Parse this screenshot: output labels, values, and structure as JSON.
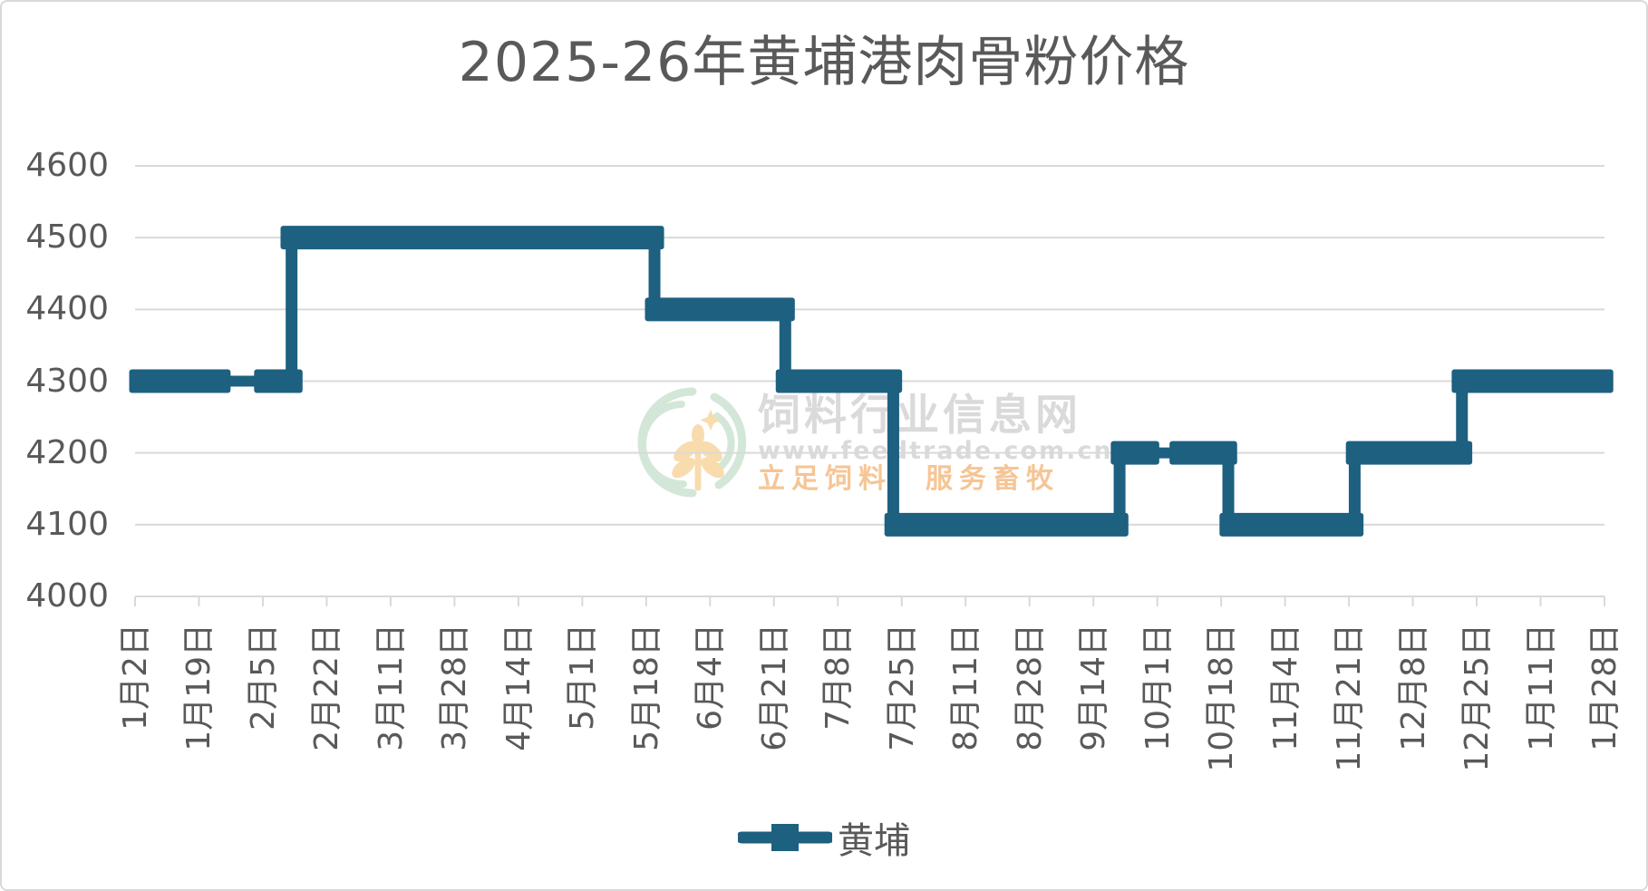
{
  "page": {
    "title": "2025-26年黄埔港肉骨粉价格",
    "background": "#ffffff",
    "border_color": "#d9d9d9"
  },
  "colors": {
    "series": "#1d6080",
    "axis_text": "#595959",
    "gridline": "#d9d9d9",
    "watermark_gray": "#dadada",
    "watermark_orange": "#f6c595",
    "watermark_green": "#d3e7d8",
    "watermark_wheat": "#f8dcae"
  },
  "legend": {
    "label": "黄埔"
  },
  "watermark": {
    "site_name": "饲料行业信息网",
    "site_url": "www.feedtrade.com.cn",
    "slogan": "立足饲料　服务畜牧"
  },
  "chart_data": {
    "type": "line",
    "title": "2025-26年黄埔港肉骨粉价格",
    "xlabel": "",
    "ylabel": "",
    "ylim": [
      4000,
      4600
    ],
    "ytick_interval": 100,
    "yticks": [
      4600,
      4500,
      4400,
      4300,
      4200,
      4100,
      4000
    ],
    "x_tick_labels": [
      "1月2日",
      "1月19日",
      "2月5日",
      "2月22日",
      "3月11日",
      "3月28日",
      "4月14日",
      "5月1日",
      "5月18日",
      "6月4日",
      "6月21日",
      "7月8日",
      "7月25日",
      "8月11日",
      "8月28日",
      "9月14日",
      "10月1日",
      "10月18日",
      "11月4日",
      "11月21日",
      "12月8日",
      "12月25日",
      "1月11日",
      "1月28日"
    ],
    "grid": true,
    "legend_position": "bottom",
    "series": [
      {
        "name": "黄埔",
        "segments": [
          {
            "from": "1月2日",
            "to": "2月11日",
            "value": 4300
          },
          {
            "from": "2月12日",
            "to": "5月20日",
            "value": 4500
          },
          {
            "from": "5月21日",
            "to": "6月24日",
            "value": 4400
          },
          {
            "from": "6月25日",
            "to": "7月22日",
            "value": 4300
          },
          {
            "from": "7月23日",
            "to": "9月20日",
            "value": 4100
          },
          {
            "from": "9月21日",
            "to": "10月19日",
            "value": 4200
          },
          {
            "from": "10月20日",
            "to": "11月22日",
            "value": 4100
          },
          {
            "from": "11月23日",
            "to": "12月21日",
            "value": 4200
          },
          {
            "from": "12月22日",
            "to": "1月28日",
            "value": 4300
          }
        ],
        "bars": [
          {
            "x1": -0.004,
            "x2": 0.065,
            "value": 4300
          },
          {
            "x1": 0.081,
            "x2": 0.114,
            "value": 4300
          },
          {
            "x1": 0.099,
            "x2": 0.36,
            "value": 4500
          },
          {
            "x1": 0.347,
            "x2": 0.449,
            "value": 4400
          },
          {
            "x1": 0.436,
            "x2": 0.522,
            "value": 4300
          },
          {
            "x1": 0.51,
            "x2": 0.676,
            "value": 4100
          },
          {
            "x1": 0.664,
            "x2": 0.697,
            "value": 4200
          },
          {
            "x1": 0.704,
            "x2": 0.75,
            "value": 4200
          },
          {
            "x1": 0.738,
            "x2": 0.836,
            "value": 4100
          },
          {
            "x1": 0.824,
            "x2": 0.91,
            "value": 4200
          },
          {
            "x1": 0.896,
            "x2": 1.006,
            "value": 4300
          }
        ]
      }
    ]
  }
}
